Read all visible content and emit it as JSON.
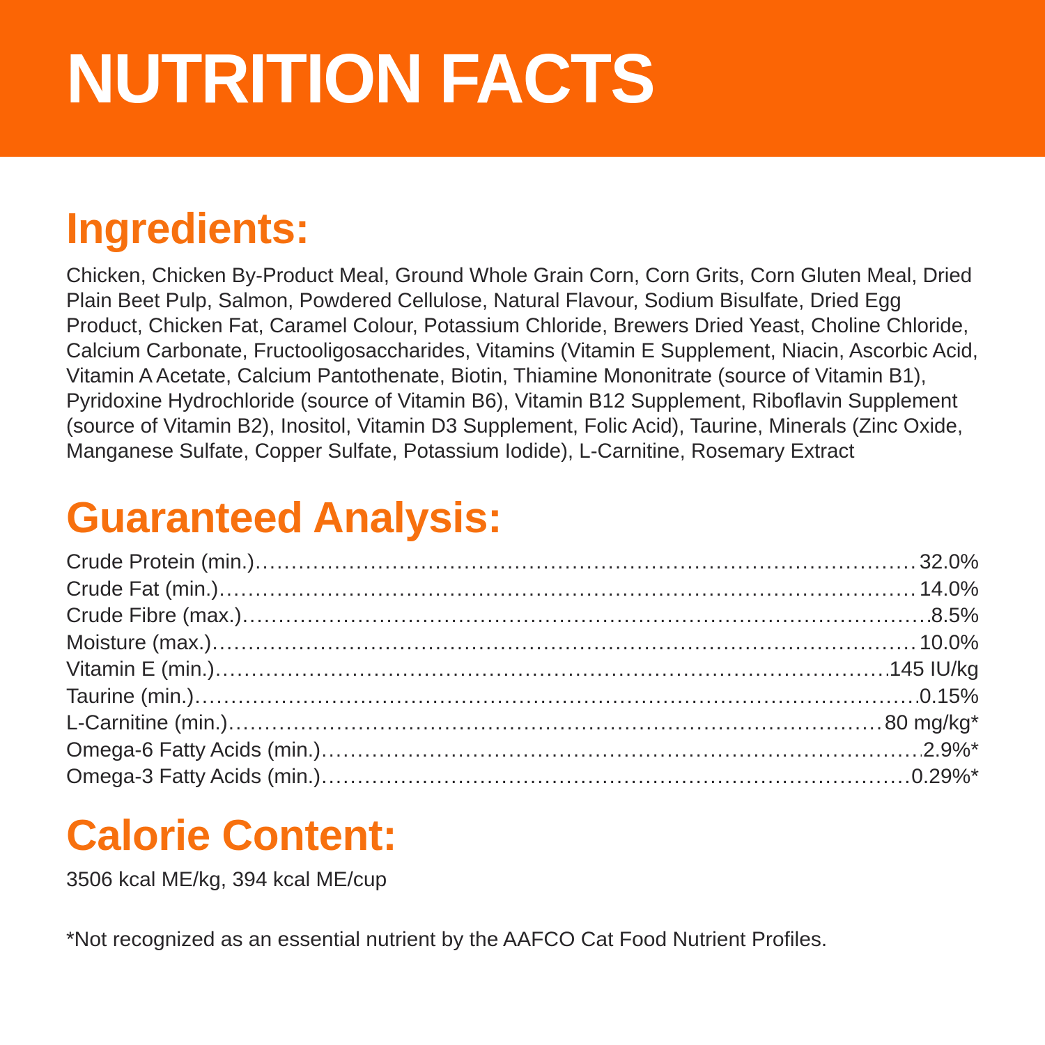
{
  "colors": {
    "banner_orange": "#FB6505",
    "accent_orange": "#F7700E",
    "body_text": "#272527",
    "banner_text": "#FFFFFF"
  },
  "header": {
    "title": "NUTRITION FACTS"
  },
  "sections": {
    "ingredients": {
      "heading": "Ingredients:",
      "text": "Chicken, Chicken By-Product Meal, Ground Whole Grain Corn, Corn Grits, Corn Gluten Meal, Dried Plain Beet Pulp, Salmon, Powdered Cellulose, Natural Flavour, Sodium Bisulfate, Dried Egg Product, Chicken Fat, Caramel Colour, Potassium Chloride, Brewers Dried Yeast, Choline Chloride, Calcium Carbonate, Fructooligosaccharides, Vitamins (Vitamin E Supplement, Niacin, Ascorbic Acid, Vitamin A Acetate, Calcium Pantothenate, Biotin, Thiamine Mononitrate (source of Vitamin B1), Pyridoxine Hydrochloride (source of Vitamin B6), Vitamin B12 Supplement, Riboflavin Supplement (source of Vitamin B2), Inositol, Vitamin D3 Supplement, Folic Acid), Taurine, Minerals (Zinc Oxide, Manganese Sulfate, Copper Sulfate, Potassium Iodide), L-Carnitine, Rosemary Extract"
    },
    "guaranteed_analysis": {
      "heading": "Guaranteed Analysis:",
      "rows": [
        {
          "label": "Crude Protein (min.)",
          "value": "32.0%"
        },
        {
          "label": "Crude Fat (min.)",
          "value": "14.0%"
        },
        {
          "label": "Crude Fibre (max.)",
          "value": "8.5%"
        },
        {
          "label": "Moisture (max.)",
          "value": "10.0%"
        },
        {
          "label": "Vitamin E (min.)",
          "value": "145 IU/kg"
        },
        {
          "label": "Taurine (min.)",
          "value": "0.15%"
        },
        {
          "label": "L-Carnitine (min.)",
          "value": "80 mg/kg*"
        },
        {
          "label": "Omega-6 Fatty Acids (min.)",
          "value": "2.9%*"
        },
        {
          "label": "Omega-3 Fatty Acids (min.)",
          "value": "0.29%*"
        }
      ]
    },
    "calorie_content": {
      "heading": "Calorie Content:",
      "text": "3506 kcal ME/kg, 394 kcal ME/cup"
    }
  },
  "footnote": "*Not recognized as an essential nutrient by the AAFCO Cat Food Nutrient Profiles."
}
